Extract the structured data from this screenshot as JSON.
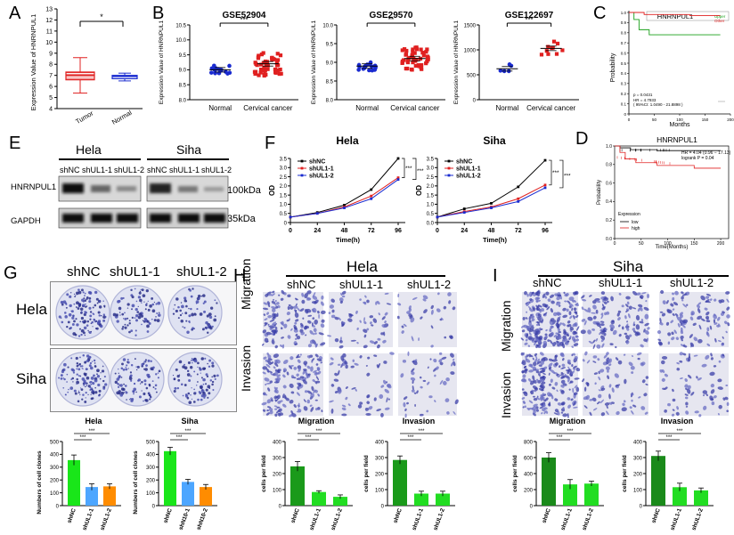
{
  "panels": {
    "A": "A",
    "B": "B",
    "C": "C",
    "D": "D",
    "E": "E",
    "F": "F",
    "G": "G",
    "H": "H",
    "I": "I"
  },
  "colors": {
    "green": "#19e619",
    "blue": "#4da6ff",
    "orange": "#ff8c00",
    "red": "#e02020",
    "navy": "#1a2bd0",
    "darkgreen": "#1a8a1a"
  },
  "panelA": {
    "ylabel": "Expression Value of  HNRNPUL1",
    "yticks": [
      "13",
      "12",
      "11",
      "10",
      "9",
      "8",
      "7",
      "6",
      "5",
      "4"
    ],
    "categories": [
      "Tumor",
      "Normal"
    ],
    "sig": "*"
  },
  "panelB": {
    "ylabel": "Expression  Value of HNRNPUL1",
    "plots": [
      {
        "title": "GSE52904",
        "sig": "***",
        "categories": [
          "Normal",
          "Cervical  cancer"
        ],
        "yticks": [
          "10.5",
          "10.0",
          "9.5",
          "9.0",
          "8.5",
          "8.0"
        ]
      },
      {
        "title": "GSE29570",
        "sig": "**",
        "categories": [
          "Normal",
          "Cervical  cancer"
        ],
        "yticks": [
          "10.0",
          "9.5",
          "9.0",
          "8.5",
          "8.0"
        ]
      },
      {
        "title": "GSE122697",
        "sig": "***",
        "categories": [
          "Normal",
          "Cervical  cancer"
        ],
        "yticks": [
          "1500",
          "1000",
          "500",
          "0"
        ]
      }
    ]
  },
  "panelC": {
    "title": "HNRNPUL1",
    "legend": [
      "Upper",
      "Other"
    ],
    "ylabel": "Probability",
    "xlabel": "Months",
    "yticks": [
      "1.0",
      "0.9",
      "0.8",
      "0.7",
      "0.6",
      "0.5",
      "0.4",
      "0.3",
      "0.2",
      "0.1",
      "0"
    ],
    "xticks": [
      "0",
      "50",
      "100",
      "150",
      "200"
    ],
    "stats": [
      "p = 0.0431",
      "HR = 4.7933",
      "( 95%CI: 1.0490 - 21.8898 )"
    ]
  },
  "panelD": {
    "title": "HNRNPUL1",
    "hr": "HR = 4.04 (0.96 − 17.13)",
    "logrank": "logrank P = 0.04",
    "ylabel": "Probability",
    "xlabel": "Time(Months)",
    "yticks": [
      "1.0",
      "0.8",
      "0.6",
      "0.4",
      "0.2",
      "0.0"
    ],
    "xticks": [
      "0",
      "50",
      "100",
      "150",
      "200"
    ],
    "legend_title": "Expression",
    "legend": [
      "low",
      "high"
    ]
  },
  "panelE": {
    "groups": [
      "Hela",
      "Siha"
    ],
    "lanes": [
      "shNC",
      "shUL1-1",
      "shUL1-2",
      "shNC",
      "shUL1-1",
      "shUL1-2"
    ],
    "rows": [
      "HNRNPUL1",
      "GAPDH"
    ],
    "sizes": [
      "100kDa",
      "35kDa"
    ]
  },
  "panelF": {
    "plots": [
      {
        "title": "Hela",
        "ylabel": "OD",
        "xlabel": "Time(h)",
        "yticks": [
          "3.5",
          "3.0",
          "2.5",
          "2.0",
          "1.5",
          "1.0",
          "0.5",
          "0"
        ],
        "xticks": [
          "0",
          "24",
          "48",
          "72",
          "96"
        ],
        "sig": [
          "***",
          "***"
        ]
      },
      {
        "title": "Siha",
        "ylabel": "OD",
        "xlabel": "Time(h)",
        "yticks": [
          "3.5",
          "3.0",
          "2.5",
          "2.0",
          "1.5",
          "1.0",
          "0.5",
          "0.0"
        ],
        "xticks": [
          "0",
          "24",
          "48",
          "72",
          "96"
        ],
        "sig": [
          "***",
          "***"
        ]
      }
    ],
    "legend": [
      "shNC",
      "shUL1-1",
      "shUL1-2"
    ]
  },
  "panelG": {
    "columns": [
      "shNC",
      "shUL1-1",
      "shUL1-2"
    ],
    "rows": [
      "Hela",
      "Siha"
    ],
    "charts": [
      {
        "title": "Hela",
        "ylabel": "Numbers of cell clones",
        "yticks": [
          "500",
          "400",
          "300",
          "200",
          "100",
          "0"
        ],
        "categories": [
          "shNC",
          "shUL1-1",
          "shUL1-2"
        ],
        "sig": [
          "***",
          "***"
        ]
      },
      {
        "title": "Siha",
        "ylabel": "Numbers of cell clones",
        "yticks": [
          "500",
          "400",
          "300",
          "200",
          "100",
          "0"
        ],
        "categories": [
          "shNC",
          "shN10-1",
          "shN10-2"
        ],
        "sig": [
          "***",
          "***"
        ]
      }
    ]
  },
  "panelH": {
    "title": "Hela",
    "columns": [
      "shNC",
      "shUL1-1",
      "shUL1-2"
    ],
    "rows": [
      "Migration",
      "Invasion"
    ],
    "charts": [
      {
        "title": "Migration",
        "ylabel": "cells per field",
        "yticks": [
          "400",
          "300",
          "200",
          "100",
          "0"
        ],
        "categories": [
          "shNC",
          "shUL1-1",
          "shUL1-2"
        ],
        "sig": [
          "***",
          "***"
        ]
      },
      {
        "title": "Invasion",
        "ylabel": "cells per field",
        "yticks": [
          "400",
          "300",
          "200",
          "100",
          "0"
        ],
        "categories": [
          "shNC",
          "shUL1-1",
          "shUL1-2"
        ],
        "sig": [
          "***",
          "***"
        ]
      }
    ]
  },
  "panelI": {
    "title": "Siha",
    "columns": [
      "shNC",
      "shUL1-1",
      "shUL1-2"
    ],
    "rows": [
      "Migration",
      "Invasion"
    ],
    "charts": [
      {
        "title": "Migration",
        "ylabel": "cells per field",
        "yticks": [
          "800",
          "600",
          "400",
          "200",
          "0"
        ],
        "categories": [
          "shNC",
          "shUL1-1",
          "shUL1-2"
        ],
        "sig": [
          "***",
          "***"
        ]
      },
      {
        "title": "Invasion",
        "ylabel": "cells per field",
        "yticks": [
          "400",
          "300",
          "200",
          "100",
          "0"
        ],
        "categories": [
          "shNC",
          "shUL1-1",
          "shUL1-2"
        ],
        "sig": [
          "***",
          "***"
        ]
      }
    ]
  },
  "chart_data": [
    {
      "id": "A",
      "type": "box",
      "categories": [
        "Tumor",
        "Normal"
      ],
      "ylim": [
        4,
        13
      ],
      "boxes": [
        {
          "min": 5.4,
          "q1": 6.6,
          "median": 7.0,
          "q3": 7.3,
          "max": 8.6
        },
        {
          "min": 6.5,
          "q1": 6.7,
          "median": 6.9,
          "q3": 7.0,
          "max": 7.2
        }
      ]
    },
    {
      "id": "B1",
      "type": "scatter",
      "title": "GSE52904",
      "categories": [
        "Normal",
        "Cervical  cancer"
      ],
      "ylim": [
        8.0,
        10.5
      ],
      "means": [
        9.0,
        9.2
      ]
    },
    {
      "id": "B2",
      "type": "scatter",
      "title": "GSE29570",
      "categories": [
        "Normal",
        "Cervical  cancer"
      ],
      "ylim": [
        8.0,
        10.0
      ],
      "means": [
        8.9,
        9.1
      ]
    },
    {
      "id": "B3",
      "type": "scatter",
      "title": "GSE122697",
      "categories": [
        "Normal",
        "Cervical  cancer"
      ],
      "ylim": [
        0,
        1500
      ],
      "means": [
        620,
        1030
      ]
    },
    {
      "id": "C",
      "type": "line",
      "title": "HNRNPUL1",
      "series": [
        {
          "name": "Upper",
          "x": [
            0,
            10,
            20,
            40,
            60,
            180
          ],
          "y": [
            1.0,
            0.93,
            0.83,
            0.78,
            0.78,
            0.78
          ]
        },
        {
          "name": "Other",
          "x": [
            0,
            30,
            60,
            120,
            180
          ],
          "y": [
            1.0,
            0.98,
            0.98,
            0.97,
            0.97
          ]
        }
      ]
    },
    {
      "id": "D",
      "type": "line",
      "title": "HNRNPUL1",
      "series": [
        {
          "name": "low",
          "x": [
            0,
            10,
            30,
            80,
            150,
            200
          ],
          "y": [
            1.0,
            0.98,
            0.96,
            0.95,
            0.95,
            0.95
          ]
        },
        {
          "name": "high",
          "x": [
            0,
            10,
            20,
            40,
            80,
            150,
            200
          ],
          "y": [
            1.0,
            0.93,
            0.86,
            0.82,
            0.79,
            0.76,
            0.76
          ]
        }
      ]
    },
    {
      "id": "F1",
      "type": "line",
      "title": "Hela",
      "x": [
        0,
        24,
        48,
        72,
        96
      ],
      "ylim": [
        0,
        3.5
      ],
      "series": [
        {
          "name": "shNC",
          "values": [
            0.3,
            0.55,
            0.95,
            1.8,
            3.5
          ]
        },
        {
          "name": "shUL1-1",
          "values": [
            0.3,
            0.5,
            0.85,
            1.45,
            2.45
          ]
        },
        {
          "name": "shUL1-2",
          "values": [
            0.3,
            0.5,
            0.8,
            1.3,
            2.35
          ]
        }
      ]
    },
    {
      "id": "F2",
      "type": "line",
      "title": "Siha",
      "x": [
        0,
        24,
        48,
        72,
        96
      ],
      "ylim": [
        0,
        3.5
      ],
      "series": [
        {
          "name": "shNC",
          "values": [
            0.3,
            0.75,
            1.05,
            1.95,
            3.4
          ]
        },
        {
          "name": "shUL1-1",
          "values": [
            0.3,
            0.6,
            0.85,
            1.3,
            2.05
          ]
        },
        {
          "name": "shUL1-2",
          "values": [
            0.3,
            0.55,
            0.8,
            1.15,
            1.9
          ]
        }
      ]
    },
    {
      "id": "G1",
      "type": "bar",
      "title": "Hela",
      "categories": [
        "shNC",
        "shUL1-1",
        "shUL1-2"
      ],
      "values": [
        355,
        145,
        150
      ],
      "errors": [
        40,
        25,
        20
      ],
      "ylim": [
        0,
        500
      ]
    },
    {
      "id": "G2",
      "type": "bar",
      "title": "Siha",
      "categories": [
        "shNC",
        "shN10-1",
        "shN10-2"
      ],
      "values": [
        425,
        185,
        145
      ],
      "errors": [
        30,
        20,
        20
      ],
      "ylim": [
        0,
        500
      ]
    },
    {
      "id": "H1",
      "type": "bar",
      "title": "Migration",
      "categories": [
        "shNC",
        "shUL1-1",
        "shUL1-2"
      ],
      "values": [
        245,
        85,
        55
      ],
      "errors": [
        30,
        8,
        12
      ],
      "ylim": [
        0,
        400
      ]
    },
    {
      "id": "H2",
      "type": "bar",
      "title": "Invasion",
      "categories": [
        "shNC",
        "shUL1-1",
        "shUL1-2"
      ],
      "values": [
        285,
        75,
        75
      ],
      "errors": [
        25,
        15,
        15
      ],
      "ylim": [
        0,
        400
      ]
    },
    {
      "id": "I1",
      "type": "bar",
      "title": "Migration",
      "categories": [
        "shNC",
        "shUL1-1",
        "shUL1-2"
      ],
      "values": [
        600,
        265,
        275
      ],
      "errors": [
        60,
        60,
        30
      ],
      "ylim": [
        0,
        800
      ]
    },
    {
      "id": "I2",
      "type": "bar",
      "title": "Invasion",
      "categories": [
        "shNC",
        "shUL1-1",
        "shUL1-2"
      ],
      "values": [
        310,
        115,
        95
      ],
      "errors": [
        30,
        25,
        15
      ],
      "ylim": [
        0,
        400
      ]
    }
  ]
}
